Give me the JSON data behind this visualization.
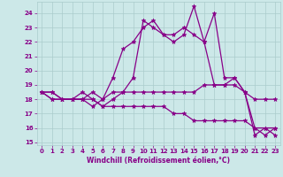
{
  "xlabel": "Windchill (Refroidissement éolien,°C)",
  "bg_color": "#cce8e8",
  "line_color": "#880088",
  "grid_color": "#aacccc",
  "xlim": [
    -0.5,
    23.5
  ],
  "ylim": [
    14.8,
    24.8
  ],
  "yticks": [
    15,
    16,
    17,
    18,
    19,
    20,
    21,
    22,
    23,
    24
  ],
  "xticks": [
    0,
    1,
    2,
    3,
    4,
    5,
    6,
    7,
    8,
    9,
    10,
    11,
    12,
    13,
    14,
    15,
    16,
    17,
    18,
    19,
    20,
    21,
    22,
    23
  ],
  "line1_x": [
    0,
    1,
    2,
    3,
    4,
    5,
    6,
    7,
    8,
    9,
    10,
    11,
    12,
    13,
    14,
    15,
    16,
    17,
    18,
    19,
    20,
    21,
    22,
    23
  ],
  "line1_y": [
    18.5,
    18.5,
    18.0,
    18.0,
    18.0,
    17.5,
    18.0,
    19.5,
    21.5,
    22.0,
    23.0,
    23.5,
    22.5,
    22.0,
    22.5,
    24.5,
    22.0,
    24.0,
    19.5,
    19.5,
    18.5,
    15.5,
    16.0,
    15.5
  ],
  "line2_x": [
    0,
    1,
    2,
    3,
    4,
    5,
    6,
    7,
    8,
    9,
    10,
    11,
    12,
    13,
    14,
    15,
    16,
    17,
    18,
    19,
    20,
    21,
    22,
    23
  ],
  "line2_y": [
    18.5,
    18.0,
    18.0,
    18.0,
    18.5,
    18.0,
    17.5,
    18.0,
    18.5,
    19.5,
    23.5,
    23.0,
    22.5,
    22.5,
    23.0,
    22.5,
    22.0,
    19.0,
    19.0,
    19.0,
    18.5,
    16.0,
    15.5,
    16.0
  ],
  "line3_x": [
    0,
    1,
    2,
    3,
    4,
    5,
    6,
    7,
    8,
    9,
    10,
    11,
    12,
    13,
    14,
    15,
    16,
    17,
    18,
    19,
    20,
    21,
    22,
    23
  ],
  "line3_y": [
    18.5,
    18.5,
    18.0,
    18.0,
    18.0,
    18.5,
    18.0,
    18.5,
    18.5,
    18.5,
    18.5,
    18.5,
    18.5,
    18.5,
    18.5,
    18.5,
    19.0,
    19.0,
    19.0,
    19.5,
    18.5,
    18.0,
    18.0,
    18.0
  ],
  "line4_x": [
    0,
    1,
    2,
    3,
    4,
    5,
    6,
    7,
    8,
    9,
    10,
    11,
    12,
    13,
    14,
    15,
    16,
    17,
    18,
    19,
    20,
    21,
    22,
    23
  ],
  "line4_y": [
    18.5,
    18.0,
    18.0,
    18.0,
    18.0,
    18.0,
    17.5,
    17.5,
    17.5,
    17.5,
    17.5,
    17.5,
    17.5,
    17.0,
    17.0,
    16.5,
    16.5,
    16.5,
    16.5,
    16.5,
    16.5,
    16.0,
    16.0,
    16.0
  ]
}
